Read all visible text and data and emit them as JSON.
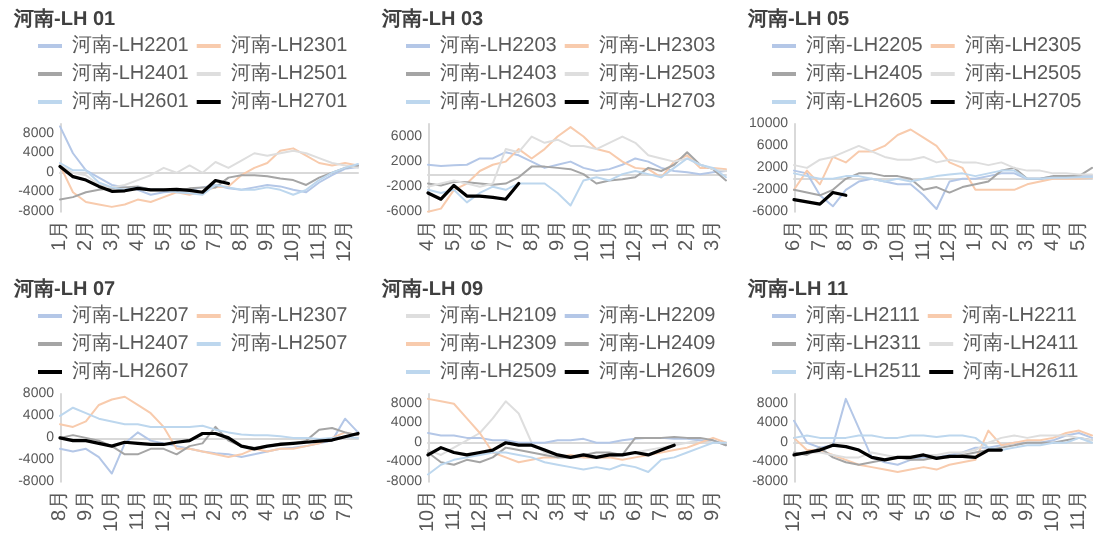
{
  "chart_data": [
    {
      "type": "line",
      "title": "河南-LH 01",
      "legend": "top",
      "marker": "none",
      "line_style": "solid",
      "ylim": [
        -8000,
        10000
      ],
      "yticks": [
        -8000,
        -4000,
        0,
        4000,
        8000
      ],
      "categories": [
        "1月",
        null,
        "2月",
        null,
        "3月",
        null,
        "4月",
        null,
        "5月",
        null,
        "6月",
        null,
        "7月",
        null,
        "8月",
        null,
        "9月",
        null,
        "10月",
        null,
        "11月",
        null,
        "12月",
        null
      ],
      "series": [
        {
          "name": "河南-LH2201",
          "color": "#b4c7e7",
          "values": [
            9500,
            4000,
            500,
            -1000,
            -2500,
            -3000,
            -3500,
            -4500,
            -4000,
            -3800,
            -3500,
            -3000,
            -2500,
            -3200,
            -3500,
            -3000,
            -2500,
            -2800,
            -3500,
            -4000,
            -2000,
            -500,
            800,
            1200
          ]
        },
        {
          "name": "河南-LH2301",
          "color": "#f8cbad",
          "values": [
            1500,
            -4000,
            -6000,
            -6500,
            -7000,
            -6500,
            -5500,
            -6000,
            -5000,
            -4000,
            -4500,
            -3800,
            -3000,
            -2800,
            -500,
            1000,
            2000,
            4500,
            5000,
            3500,
            2000,
            1500,
            2000,
            1500
          ]
        },
        {
          "name": "河南-LH2401",
          "color": "#a5a5a5",
          "values": [
            -5500,
            -5000,
            -4000,
            -3500,
            -3200,
            -3000,
            -2800,
            -3500,
            -3500,
            -3800,
            -3200,
            -3000,
            -3000,
            -1000,
            -500,
            -500,
            -700,
            -1200,
            -1500,
            -2500,
            -1000,
            0,
            1000,
            1500
          ]
        },
        {
          "name": "河南-LH2501",
          "color": "#dedede",
          "values": [
            1500,
            0,
            -500,
            -2500,
            -3000,
            -2500,
            -1500,
            -500,
            1000,
            0,
            1500,
            0,
            2200,
            1000,
            2500,
            4000,
            3500,
            4000,
            4500,
            4000,
            3000,
            2000,
            1500,
            1000
          ]
        },
        {
          "name": "河南-LH2601",
          "color": "#bdd7ee",
          "values": [
            2000,
            500,
            500,
            -2000,
            -3000,
            -3500,
            -3000,
            -3500,
            -3500,
            -4000,
            -4200,
            -4500,
            -2500,
            -3000,
            -3500,
            -3500,
            -3000,
            -3500,
            -4500,
            -3500,
            -1500,
            0,
            1000,
            1800
          ]
        },
        {
          "name": "河南-LH2701",
          "color": "#000000",
          "values": [
            1300,
            -800,
            -1500,
            -2800,
            -3800,
            -3700,
            -3200,
            -3500,
            -3500,
            -3400,
            -3600,
            -4000,
            -1600,
            -2200,
            null,
            null,
            null,
            null,
            null,
            null,
            null,
            null,
            null,
            null
          ]
        }
      ]
    },
    {
      "type": "line",
      "title": "河南-LH 03",
      "legend": "top",
      "marker": "none",
      "line_style": "solid",
      "ylim": [
        -6000,
        8000
      ],
      "yticks": [
        -6000,
        -2000,
        2000,
        6000
      ],
      "categories": [
        "4月",
        null,
        "5月",
        null,
        "6月",
        null,
        "7月",
        null,
        "8月",
        null,
        "9月",
        null,
        "10月",
        null,
        "11月",
        null,
        "12月",
        null,
        "1月",
        null,
        "2月",
        null,
        "3月",
        null
      ],
      "series": [
        {
          "name": "河南-LH2203",
          "color": "#b4c7e7",
          "values": [
            1500,
            1300,
            1400,
            1500,
            2500,
            2500,
            3500,
            3000,
            2000,
            1000,
            1500,
            2000,
            1000,
            500,
            800,
            1500,
            2500,
            2000,
            1000,
            500,
            300,
            0,
            300,
            500
          ]
        },
        {
          "name": "河南-LH2303",
          "color": "#f8cbad",
          "values": [
            -6000,
            -5500,
            -2500,
            -1500,
            500,
            1500,
            2000,
            4000,
            2500,
            4000,
            6000,
            7500,
            6000,
            4000,
            3500,
            2000,
            1000,
            800,
            -500,
            2000,
            3000,
            1000,
            1000,
            800
          ]
        },
        {
          "name": "河南-LH2403",
          "color": "#a5a5a5",
          "values": [
            -1500,
            -1800,
            -1200,
            -1300,
            -1500,
            -1700,
            -1500,
            -500,
            1200,
            1200,
            1000,
            800,
            0,
            -1500,
            -1000,
            -800,
            -500,
            1000,
            500,
            1500,
            3500,
            1500,
            800,
            -1000
          ]
        },
        {
          "name": "河南-LH2503",
          "color": "#dedede",
          "values": [
            -2000,
            -1500,
            -1000,
            -1500,
            -2000,
            -1500,
            4000,
            3500,
            6000,
            5000,
            5500,
            4500,
            4500,
            4000,
            5000,
            6000,
            5000,
            3000,
            2500,
            2000,
            2500,
            1500,
            800,
            500
          ]
        },
        {
          "name": "河南-LH2603",
          "color": "#bdd7ee",
          "values": [
            -2500,
            -3000,
            -2500,
            -4500,
            -3000,
            -2000,
            -2500,
            -1500,
            -1500,
            -1500,
            -3000,
            -5000,
            -1000,
            -500,
            -1000,
            0,
            500,
            0,
            -500,
            1000,
            2500,
            1500,
            1000,
            -500
          ]
        },
        {
          "name": "河南-LH2703",
          "color": "#000000",
          "values": [
            -3000,
            -4000,
            -1800,
            -3500,
            -3500,
            -3700,
            -4000,
            -1500,
            null,
            null,
            null,
            null,
            null,
            null,
            null,
            null,
            null,
            null,
            null,
            null,
            null,
            null,
            null,
            null
          ]
        }
      ]
    },
    {
      "type": "line",
      "title": "河南-LH 05",
      "legend": "top",
      "marker": "none",
      "line_style": "solid",
      "ylim": [
        -6000,
        10000
      ],
      "yticks": [
        -6000,
        -2000,
        2000,
        6000,
        10000
      ],
      "categories": [
        "6月",
        null,
        "7月",
        null,
        "8月",
        null,
        "9月",
        null,
        "10月",
        null,
        "11月",
        null,
        "12月",
        null,
        "1月",
        null,
        "2月",
        null,
        "3月",
        null,
        "4月",
        null,
        "5月",
        null
      ],
      "series": [
        {
          "name": "河南-LH2205",
          "color": "#b4c7e7",
          "values": [
            1500,
            1000,
            -3000,
            -5000,
            -2000,
            -500,
            0,
            -500,
            -1000,
            -1000,
            -3000,
            -5500,
            -500,
            0,
            0,
            500,
            1000,
            1000,
            0,
            0,
            500,
            500,
            500,
            500
          ]
        },
        {
          "name": "河南-LH2305",
          "color": "#f8cbad",
          "values": [
            -2000,
            1500,
            -1000,
            4000,
            3000,
            5000,
            5000,
            6000,
            8000,
            9000,
            7500,
            6000,
            3000,
            2000,
            -2000,
            -2000,
            -2000,
            -2000,
            -1000,
            -500,
            0,
            0,
            0,
            200
          ]
        },
        {
          "name": "河南-LH2405",
          "color": "#a5a5a5",
          "values": [
            -2000,
            -2500,
            -3000,
            -2000,
            0,
            1000,
            1000,
            500,
            500,
            0,
            -2000,
            -1500,
            -2500,
            -1500,
            -1000,
            -500,
            1500,
            2000,
            0,
            0,
            500,
            500,
            500,
            2000
          ]
        },
        {
          "name": "河南-LH2505",
          "color": "#dedede",
          "values": [
            2500,
            2000,
            3500,
            4000,
            5000,
            6000,
            5000,
            4000,
            3500,
            3500,
            4000,
            3000,
            3500,
            3000,
            3000,
            2500,
            3000,
            2000,
            1500,
            1500,
            1000,
            1000,
            800,
            800
          ]
        },
        {
          "name": "河南-LH2605",
          "color": "#bdd7ee",
          "values": [
            1000,
            500,
            0,
            0,
            500,
            500,
            0,
            -500,
            0,
            -500,
            0,
            500,
            800,
            1000,
            500,
            1000,
            1500,
            1500,
            0,
            0,
            200,
            200,
            300,
            300
          ]
        },
        {
          "name": "河南-LH2705",
          "color": "#000000",
          "values": [
            -3800,
            -4200,
            -4600,
            -2500,
            -3000,
            null,
            null,
            null,
            null,
            null,
            null,
            null,
            null,
            null,
            null,
            null,
            null,
            null,
            null,
            null,
            null,
            null,
            null,
            null
          ]
        }
      ]
    },
    {
      "type": "line",
      "title": "河南-LH 07",
      "legend": "top",
      "marker": "none",
      "line_style": "solid",
      "ylim": [
        -8000,
        8000
      ],
      "yticks": [
        -8000,
        -4000,
        0,
        4000,
        8000
      ],
      "categories": [
        "8月",
        null,
        "9月",
        null,
        "10月",
        null,
        "11月",
        null,
        "12月",
        null,
        "1月",
        null,
        "2月",
        null,
        "3月",
        null,
        "4月",
        null,
        "5月",
        null,
        "6月",
        null,
        "7月",
        null
      ],
      "series": [
        {
          "name": "河南-LH2207",
          "color": "#b4c7e7",
          "values": [
            -2000,
            -2500,
            -2000,
            -3500,
            -6500,
            -1000,
            1000,
            -500,
            -1000,
            -1500,
            -2000,
            -2500,
            -2800,
            -3000,
            -3500,
            -3000,
            -2500,
            -2000,
            -1800,
            -1500,
            -1000,
            -500,
            3500,
            1000
          ]
        },
        {
          "name": "河南-LH2307",
          "color": "#f8cbad",
          "values": [
            2500,
            2000,
            3000,
            6000,
            7000,
            7500,
            6000,
            4500,
            2000,
            -2000,
            -2000,
            -2500,
            -3000,
            -3500,
            -3000,
            -2000,
            -2500,
            -2000,
            -2000,
            -1500,
            -1000,
            0,
            1000,
            500
          ]
        },
        {
          "name": "河南-LH2407",
          "color": "#a5a5a5",
          "values": [
            0,
            500,
            0,
            -500,
            -1500,
            -3000,
            -3000,
            -2000,
            -2000,
            -3000,
            -1500,
            -1000,
            2000,
            -500,
            -1500,
            -1800,
            -1500,
            -1000,
            -1000,
            -500,
            1500,
            1800,
            1000,
            500
          ]
        },
        {
          "name": "河南-LH2507",
          "color": "#bdd7ee",
          "values": [
            4000,
            5500,
            4500,
            3500,
            3000,
            2500,
            2500,
            2000,
            2000,
            2000,
            2000,
            2200,
            1500,
            1000,
            600,
            500,
            500,
            300,
            0,
            0,
            -200,
            0,
            200,
            0
          ]
        },
        {
          "name": "河南-LH2607",
          "color": "#000000",
          "values": [
            0,
            -500,
            -500,
            -1000,
            -1500,
            -800,
            -1000,
            -1200,
            -1200,
            -800,
            -500,
            800,
            800,
            0,
            -1500,
            -2000,
            -1500,
            -1200,
            -1000,
            -800,
            -600,
            -400,
            200,
            800
          ]
        }
      ]
    },
    {
      "type": "line",
      "title": "河南-LH 09",
      "legend": "top",
      "marker": "none",
      "line_style": "solid",
      "ylim": [
        -8000,
        10000
      ],
      "yticks": [
        -8000,
        -4000,
        0,
        4000,
        8000
      ],
      "categories": [
        "10月",
        null,
        "11月",
        null,
        "12月",
        null,
        "1月",
        null,
        "2月",
        null,
        "3月",
        null,
        "4月",
        null,
        "5月",
        null,
        "6月",
        null,
        "7月",
        null,
        "8月",
        null,
        "9月",
        null
      ],
      "series": [
        {
          "name": "河南-LH2109",
          "color": "#dedede",
          "values": [
            -1500,
            -2500,
            -1000,
            500,
            2000,
            5000,
            8500,
            6000,
            0,
            -2000,
            -2500,
            -3000,
            -3000,
            -3200,
            -3000,
            -2500,
            -2000,
            -1500,
            -1000,
            -500,
            0,
            500,
            0,
            0
          ]
        },
        {
          "name": "河南-LH2209",
          "color": "#b4c7e7",
          "values": [
            2000,
            1500,
            1500,
            1000,
            1000,
            500,
            500,
            0,
            0,
            0,
            500,
            500,
            800,
            0,
            0,
            500,
            800,
            1000,
            1000,
            800,
            800,
            500,
            500,
            -500
          ]
        },
        {
          "name": "河南-LH2309",
          "color": "#f8cbad",
          "values": [
            9000,
            8500,
            8000,
            5000,
            2000,
            -2000,
            -3000,
            -4000,
            -3500,
            -3000,
            -3000,
            -2500,
            -3000,
            -3000,
            -3000,
            -3500,
            -3000,
            -2500,
            -2000,
            -1500,
            -1000,
            0,
            1000,
            0
          ]
        },
        {
          "name": "河南-LH2409",
          "color": "#a5a5a5",
          "values": [
            -2000,
            -4000,
            -4500,
            -3500,
            -4000,
            -3000,
            -1000,
            -1500,
            -2000,
            -2500,
            -3000,
            -3000,
            -2500,
            -2000,
            -2000,
            -2500,
            1000,
            1000,
            1000,
            1200,
            1000,
            1000,
            500,
            -500
          ]
        },
        {
          "name": "河南-LH2509",
          "color": "#bdd7ee",
          "values": [
            -6500,
            -4500,
            -3500,
            -3000,
            -2500,
            -2000,
            -2000,
            -2500,
            -3000,
            -4000,
            -4500,
            -5000,
            -5500,
            -5000,
            -5500,
            -4500,
            -5000,
            -6000,
            -3500,
            -3000,
            -2000,
            -1000,
            0,
            0
          ]
        },
        {
          "name": "河南-LH2609",
          "color": "#000000",
          "values": [
            -2500,
            -1000,
            -2000,
            -2500,
            -2000,
            -1500,
            0,
            -500,
            -500,
            -1500,
            -2500,
            -3000,
            -2500,
            -3000,
            -2500,
            -2500,
            -2000,
            -2500,
            -1500,
            -500,
            null,
            null,
            null,
            null
          ]
        }
      ]
    },
    {
      "type": "line",
      "title": "河南-LH 11",
      "legend": "top",
      "marker": "none",
      "line_style": "solid",
      "ylim": [
        -8000,
        10000
      ],
      "yticks": [
        -8000,
        -4000,
        0,
        4000,
        8000
      ],
      "categories": [
        "12月",
        null,
        "1月",
        null,
        "2月",
        null,
        "3月",
        null,
        "4月",
        null,
        "5月",
        null,
        "6月",
        null,
        "7月",
        null,
        "8月",
        null,
        "9月",
        null,
        "10月",
        null,
        "11月",
        null
      ],
      "series": [
        {
          "name": "河南-LH2111",
          "color": "#b4c7e7",
          "values": [
            4500,
            0,
            -1000,
            -500,
            9000,
            3000,
            -3000,
            -4000,
            -4500,
            -3500,
            -3000,
            -3000,
            -2500,
            -2000,
            -1000,
            -1000,
            -500,
            0,
            0,
            0,
            500,
            1500,
            2000,
            1000
          ]
        },
        {
          "name": "河南-LH2211",
          "color": "#f8cbad",
          "values": [
            1000,
            -1500,
            -1500,
            -2500,
            -3500,
            -4500,
            -5000,
            -5500,
            -6000,
            -5500,
            -5000,
            -5500,
            -4500,
            -4000,
            -3500,
            2500,
            -500,
            0,
            500,
            500,
            1000,
            2000,
            2500,
            1500
          ]
        },
        {
          "name": "河南-LH2311",
          "color": "#a5a5a5",
          "values": [
            -2000,
            -2500,
            -1000,
            -3000,
            -4000,
            -4500,
            -4000,
            -3500,
            -3000,
            -3500,
            -3500,
            -3000,
            -3000,
            -2500,
            -2000,
            -1500,
            -1000,
            -500,
            0,
            0,
            0,
            500,
            1000,
            500
          ]
        },
        {
          "name": "河南-LH2411",
          "color": "#dedede",
          "values": [
            -2500,
            -2000,
            -2000,
            -2500,
            -3000,
            -3000,
            -2000,
            -2500,
            -3000,
            -3000,
            -2500,
            -2500,
            -2000,
            -2000,
            -1500,
            0,
            1000,
            1500,
            1000,
            1500,
            1500,
            1500,
            1000,
            500
          ]
        },
        {
          "name": "河南-LH2511",
          "color": "#bdd7ee",
          "values": [
            1000,
            1500,
            1000,
            1000,
            1000,
            1500,
            1500,
            1000,
            1000,
            1500,
            1500,
            1200,
            1500,
            1500,
            1000,
            -1000,
            -1500,
            -1000,
            -500,
            -500,
            0,
            0,
            1000,
            0
          ]
        },
        {
          "name": "河南-LH2611",
          "color": "#000000",
          "values": [
            -2500,
            -2000,
            -1500,
            -500,
            -800,
            -1500,
            -3000,
            -3500,
            -3000,
            -3000,
            -2500,
            -3200,
            -2800,
            -2800,
            -3000,
            -1500,
            -1500,
            null,
            null,
            null,
            null,
            null,
            null,
            null
          ]
        }
      ]
    }
  ]
}
